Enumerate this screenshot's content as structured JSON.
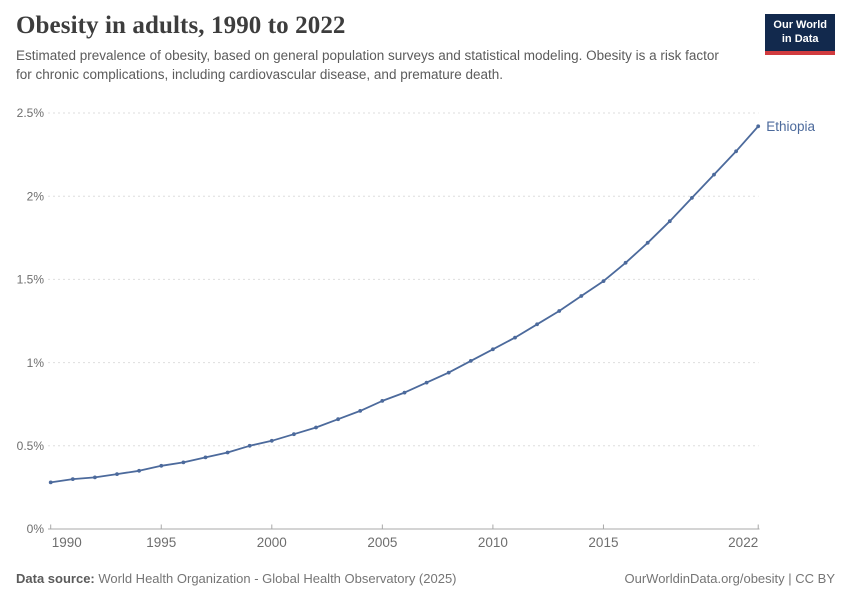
{
  "header": {
    "title": "Obesity in adults, 1990 to 2022",
    "subtitle": "Estimated prevalence of obesity, based on general population surveys and statistical modeling. Obesity is a risk factor for chronic complications, including cardiovascular disease, and premature death."
  },
  "logo": {
    "line1": "Our World",
    "line2": "in Data",
    "bg_color": "#12294d",
    "accent_color": "#d13b3f"
  },
  "chart_data": {
    "type": "line",
    "title": "Obesity in adults, 1990 to 2022",
    "xlabel": "",
    "ylabel": "",
    "unit": "%",
    "xlim": [
      1990,
      2022
    ],
    "ylim": [
      0,
      2.5
    ],
    "grid": "horizontal-dashed",
    "legend_position": "end-of-line-label",
    "x_ticks": [
      1990,
      1995,
      2000,
      2005,
      2010,
      2015,
      2022
    ],
    "y_ticks": [
      {
        "value": 0,
        "label": "0%"
      },
      {
        "value": 0.5,
        "label": "0.5%"
      },
      {
        "value": 1,
        "label": "1%"
      },
      {
        "value": 1.5,
        "label": "1.5%"
      },
      {
        "value": 2,
        "label": "2%"
      },
      {
        "value": 2.5,
        "label": "2.5%"
      }
    ],
    "series": [
      {
        "name": "Ethiopia",
        "color": "#4C6A9C",
        "x": [
          1990,
          1991,
          1992,
          1993,
          1994,
          1995,
          1996,
          1997,
          1998,
          1999,
          2000,
          2001,
          2002,
          2003,
          2004,
          2005,
          2006,
          2007,
          2008,
          2009,
          2010,
          2011,
          2012,
          2013,
          2014,
          2015,
          2016,
          2017,
          2018,
          2019,
          2020,
          2021,
          2022
        ],
        "values": [
          0.28,
          0.3,
          0.31,
          0.33,
          0.35,
          0.38,
          0.4,
          0.43,
          0.46,
          0.5,
          0.53,
          0.57,
          0.61,
          0.66,
          0.71,
          0.77,
          0.82,
          0.88,
          0.94,
          1.01,
          1.08,
          1.15,
          1.23,
          1.31,
          1.4,
          1.49,
          1.6,
          1.72,
          1.85,
          1.99,
          2.13,
          2.27,
          2.42
        ]
      }
    ],
    "axis_color": "#a8a8a8",
    "gridline_color": "#dedede",
    "tick_label_color": "#6e6e6e"
  },
  "footer": {
    "source_label": "Data source:",
    "source_text": " World Health Organization - Global Health Observatory (2025)",
    "link_text": "OurWorldinData.org/obesity | CC BY"
  }
}
